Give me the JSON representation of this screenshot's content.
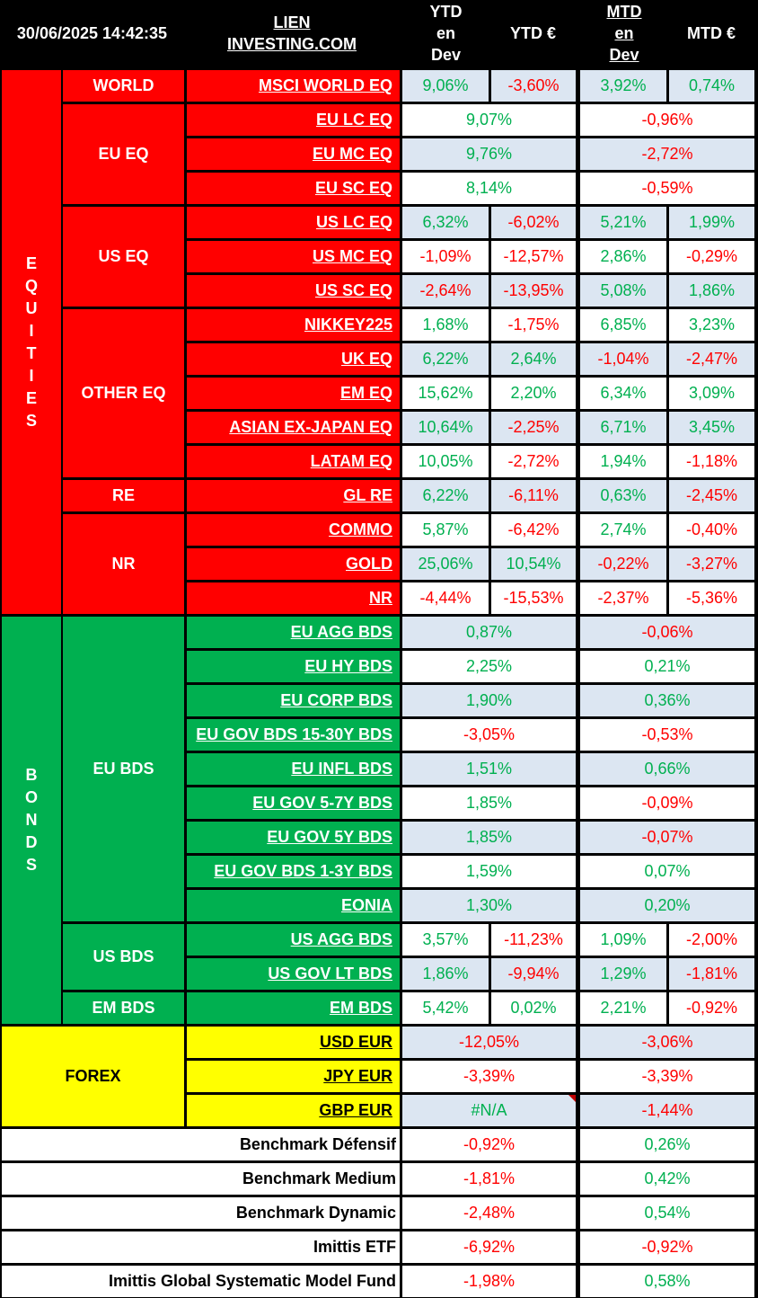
{
  "header": {
    "timestamp": "30/06/2025 14:42:35",
    "link_line1": "LIEN",
    "link_line2": "INVESTING.COM",
    "ytd_dev": [
      "YTD",
      "en",
      "Dev"
    ],
    "ytd_eur": "YTD €",
    "mtd_dev": [
      "MTD",
      "en",
      "Dev"
    ],
    "mtd_eur": "MTD €"
  },
  "colors": {
    "equities": "#ff0000",
    "bonds": "#00b050",
    "forex": "#ffff00",
    "positive": "#00b050",
    "negative": "#ff0000",
    "row_band": "#dce6f2"
  },
  "sections": [
    {
      "key": "equities",
      "label": "EQUITIES",
      "color": "red"
    },
    {
      "key": "bonds",
      "label": "BONDS",
      "color": "green"
    },
    {
      "key": "forex",
      "label": "FOREX",
      "color": "yellow"
    }
  ],
  "groups": [
    {
      "label": "WORLD",
      "section": "equities",
      "first": 0,
      "count": 1
    },
    {
      "label": "EU EQ",
      "section": "equities",
      "first": 1,
      "count": 3
    },
    {
      "label": "US EQ",
      "section": "equities",
      "first": 4,
      "count": 3
    },
    {
      "label": "OTHER EQ",
      "section": "equities",
      "first": 7,
      "count": 5
    },
    {
      "label": "RE",
      "section": "equities",
      "first": 12,
      "count": 1
    },
    {
      "label": "NR",
      "section": "equities",
      "first": 13,
      "count": 3
    },
    {
      "label": "EU BDS",
      "section": "bonds",
      "first": 16,
      "count": 9
    },
    {
      "label": "US BDS",
      "section": "bonds",
      "first": 25,
      "count": 2
    },
    {
      "label": "EM BDS",
      "section": "bonds",
      "first": 27,
      "count": 1
    }
  ],
  "rows": [
    {
      "name": "MSCI WORLD EQ",
      "ytd_dev": "9,06%",
      "ytd_eur": "-3,60%",
      "mtd_dev": "3,92%",
      "mtd_eur": "0,74%"
    },
    {
      "name": "EU LC EQ",
      "ytd": "9,07%",
      "mtd": "-0,96%"
    },
    {
      "name": "EU MC EQ",
      "ytd": "9,76%",
      "mtd": "-2,72%"
    },
    {
      "name": "EU SC EQ",
      "ytd": "8,14%",
      "mtd": "-0,59%"
    },
    {
      "name": "US LC EQ",
      "ytd_dev": "6,32%",
      "ytd_eur": "-6,02%",
      "mtd_dev": "5,21%",
      "mtd_eur": "1,99%"
    },
    {
      "name": "US MC EQ",
      "ytd_dev": "-1,09%",
      "ytd_eur": "-12,57%",
      "mtd_dev": "2,86%",
      "mtd_eur": "-0,29%"
    },
    {
      "name": "US SC EQ",
      "ytd_dev": "-2,64%",
      "ytd_eur": "-13,95%",
      "mtd_dev": "5,08%",
      "mtd_eur": "1,86%"
    },
    {
      "name": "NIKKEY225",
      "ytd_dev": "1,68%",
      "ytd_eur": "-1,75%",
      "mtd_dev": "6,85%",
      "mtd_eur": "3,23%"
    },
    {
      "name": "UK EQ",
      "ytd_dev": "6,22%",
      "ytd_eur": "2,64%",
      "mtd_dev": "-1,04%",
      "mtd_eur": "-2,47%"
    },
    {
      "name": "EM EQ",
      "ytd_dev": "15,62%",
      "ytd_eur": "2,20%",
      "mtd_dev": "6,34%",
      "mtd_eur": "3,09%"
    },
    {
      "name": "ASIAN EX-JAPAN EQ",
      "ytd_dev": "10,64%",
      "ytd_eur": "-2,25%",
      "mtd_dev": "6,71%",
      "mtd_eur": "3,45%"
    },
    {
      "name": "LATAM EQ",
      "ytd_dev": "10,05%",
      "ytd_eur": "-2,72%",
      "mtd_dev": "1,94%",
      "mtd_eur": "-1,18%"
    },
    {
      "name": "GL RE",
      "ytd_dev": "6,22%",
      "ytd_eur": "-6,11%",
      "mtd_dev": "0,63%",
      "mtd_eur": "-2,45%"
    },
    {
      "name": "COMMO",
      "ytd_dev": "5,87%",
      "ytd_eur": "-6,42%",
      "mtd_dev": "2,74%",
      "mtd_eur": "-0,40%"
    },
    {
      "name": "GOLD",
      "ytd_dev": "25,06%",
      "ytd_eur": "10,54%",
      "mtd_dev": "-0,22%",
      "mtd_eur": "-3,27%"
    },
    {
      "name": "NR",
      "ytd_dev": "-4,44%",
      "ytd_eur": "-15,53%",
      "mtd_dev": "-2,37%",
      "mtd_eur": "-5,36%"
    },
    {
      "name": "EU AGG BDS",
      "ytd": "0,87%",
      "mtd": "-0,06%"
    },
    {
      "name": "EU HY BDS",
      "ytd": "2,25%",
      "mtd": "0,21%"
    },
    {
      "name": "EU CORP BDS",
      "ytd": "1,90%",
      "mtd": "0,36%"
    },
    {
      "name": "EU GOV BDS 15-30Y BDS",
      "ytd": "-3,05%",
      "mtd": "-0,53%"
    },
    {
      "name": "EU INFL BDS",
      "ytd": "1,51%",
      "mtd": "0,66%"
    },
    {
      "name": "EU GOV 5-7Y BDS",
      "ytd": "1,85%",
      "mtd": "-0,09%"
    },
    {
      "name": "EU GOV 5Y BDS",
      "ytd": "1,85%",
      "mtd": "-0,07%"
    },
    {
      "name": "EU GOV BDS 1-3Y BDS",
      "ytd": "1,59%",
      "mtd": "0,07%"
    },
    {
      "name": "EONIA",
      "ytd": "1,30%",
      "mtd": "0,20%"
    },
    {
      "name": "US AGG BDS",
      "ytd_dev": "3,57%",
      "ytd_eur": "-11,23%",
      "mtd_dev": "1,09%",
      "mtd_eur": "-2,00%"
    },
    {
      "name": "US GOV LT BDS",
      "ytd_dev": "1,86%",
      "ytd_eur": "-9,94%",
      "mtd_dev": "1,29%",
      "mtd_eur": "-1,81%"
    },
    {
      "name": "EM BDS",
      "ytd_dev": "5,42%",
      "ytd_eur": "0,02%",
      "mtd_dev": "2,21%",
      "mtd_eur": "-0,92%"
    },
    {
      "name": "USD EUR",
      "ytd": "-12,05%",
      "mtd": "-3,06%"
    },
    {
      "name": "JPY EUR",
      "ytd": "-3,39%",
      "mtd": "-3,39%"
    },
    {
      "name": "GBP EUR",
      "ytd": "#N/A",
      "mtd": "-1,44%",
      "comment_flag": true
    }
  ],
  "benchmarks": [
    {
      "name": "Benchmark Défensif",
      "ytd": "-0,92%",
      "mtd": "0,26%"
    },
    {
      "name": "Benchmark Medium",
      "ytd": "-1,81%",
      "mtd": "0,42%"
    },
    {
      "name": "Benchmark Dynamic",
      "ytd": "-2,48%",
      "mtd": "0,54%"
    },
    {
      "name": "Imittis ETF",
      "ytd": "-6,92%",
      "mtd": "-0,92%"
    },
    {
      "name": "Imittis Global Systematic Model Fund",
      "ytd": "-1,98%",
      "mtd": "0,58%"
    }
  ]
}
